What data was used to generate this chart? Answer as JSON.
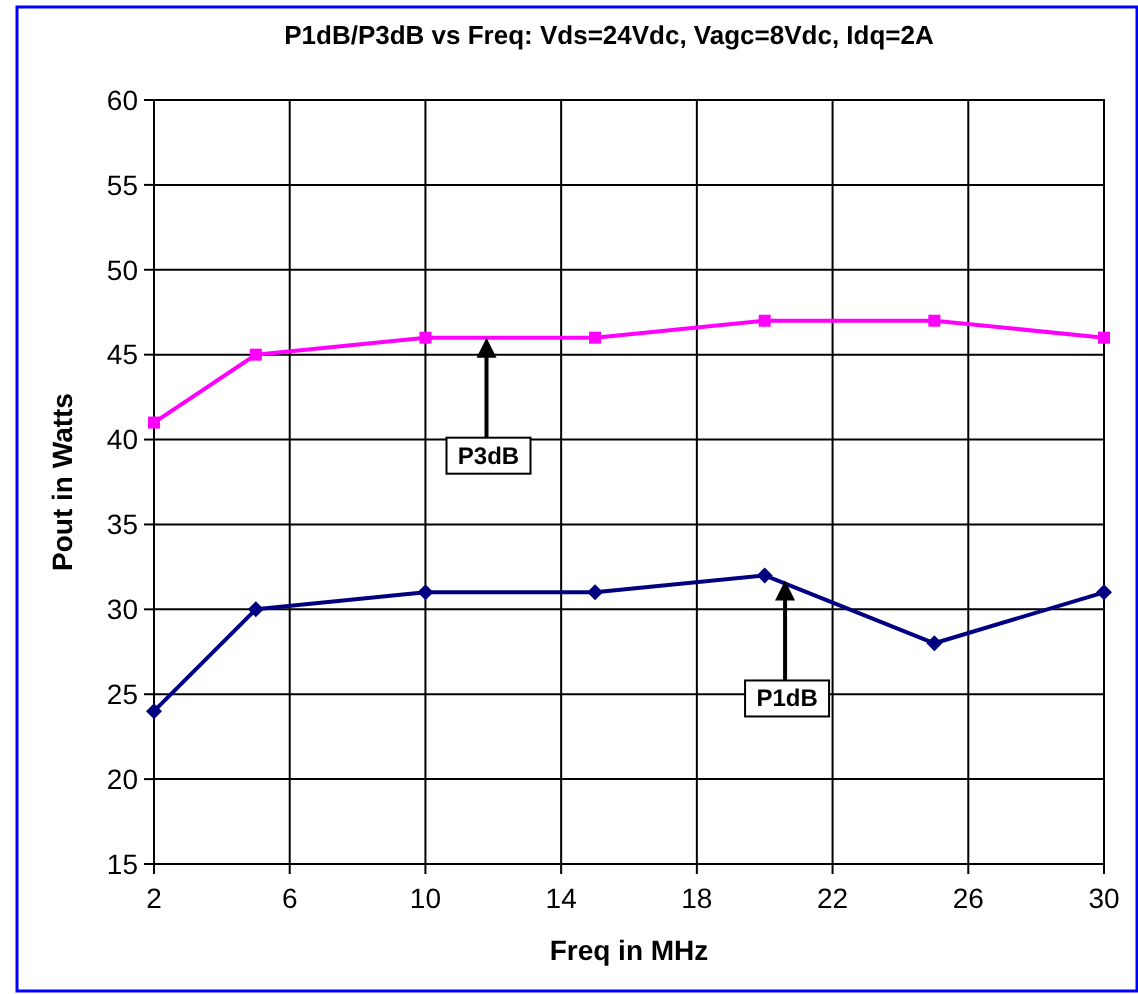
{
  "chart_data": {
    "type": "line",
    "title": "P1dB/P3dB vs Freq: Vds=24Vdc, Vagc=8Vdc, Idq=2A",
    "xlabel": "Freq in MHz",
    "ylabel": "Pout in Watts",
    "xlim": [
      2,
      30
    ],
    "xticks": [
      2,
      6,
      10,
      14,
      18,
      22,
      26,
      30
    ],
    "ylim": [
      15,
      60
    ],
    "yticks": [
      15,
      20,
      25,
      30,
      35,
      40,
      45,
      50,
      55,
      60
    ],
    "grid": true,
    "series": [
      {
        "x": [
          2,
          5,
          10,
          15,
          20,
          25,
          30
        ],
        "values": [
          41,
          45,
          46,
          46,
          47,
          47,
          46
        ],
        "color": "#ff00ff",
        "marker": "square"
      },
      {
        "x": [
          2,
          5,
          10,
          15,
          20,
          25,
          30
        ],
        "values": [
          24,
          30,
          31,
          31,
          32,
          28,
          31
        ],
        "color": "#000080",
        "marker": "diamond"
      }
    ],
    "annotations": [
      {
        "text": "P3dB",
        "x": 11.8,
        "y": 46
      },
      {
        "text": "P1dB",
        "x": 20.6,
        "y": 31.7
      }
    ]
  }
}
